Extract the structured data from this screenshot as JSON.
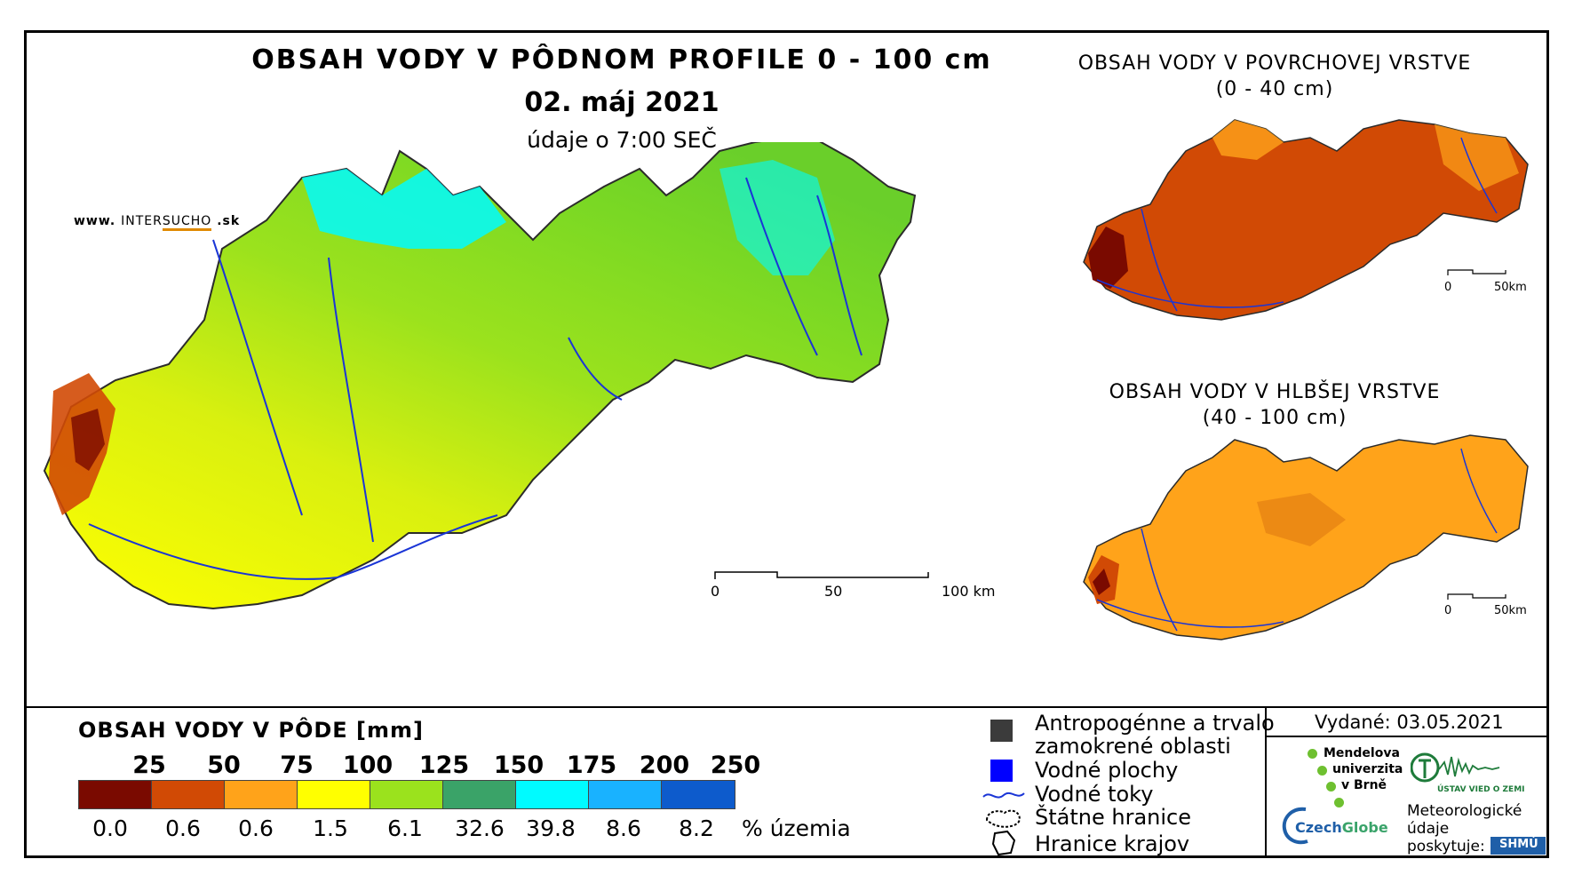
{
  "main_map": {
    "title": "OBSAH VODY V PÔDNOM PROFILE 0 - 100 cm",
    "date": "02. máj 2021",
    "time_note": "údaje o 7:00 SEČ",
    "website_prefix": "www.",
    "website_brand": "INTER",
    "website_brand2": "SUCHO",
    "website_suffix": ".sk",
    "scale": {
      "labels": [
        "0",
        "50",
        "100 km"
      ],
      "max_km": 100
    }
  },
  "surface_map": {
    "title_line1": "OBSAH VODY V POVRCHOVEJ VRSTVE",
    "title_line2": "(0 - 40 cm)",
    "scale": {
      "labels": [
        "0",
        "50km"
      ]
    }
  },
  "deep_map": {
    "title_line1": "OBSAH VODY V HLBŠEJ VRSTVE",
    "title_line2": "(40 - 100 cm)",
    "scale": {
      "labels": [
        "0",
        "50km"
      ]
    }
  },
  "legend": {
    "title": "OBSAH VODY V PÔDE [mm]",
    "thresholds": [
      "25",
      "50",
      "75",
      "100",
      "125",
      "150",
      "175",
      "200",
      "250"
    ],
    "class_colors": [
      "#7a0a00",
      "#d14a05",
      "#ffa31a",
      "#ffff00",
      "#9be21d",
      "#3aa368",
      "#00fbff",
      "#19b2ff",
      "#0d5bcc"
    ],
    "percentages": [
      "0.0",
      "0.6",
      "0.6",
      "1.5",
      "6.1",
      "32.6",
      "39.8",
      "8.6",
      "8.2"
    ],
    "percent_unit": "% územia"
  },
  "symbols": {
    "urban_line1": "Antropogénne a trvalo",
    "urban_line2": "zamokrené oblasti",
    "water_bodies": "Vodné plochy",
    "rivers": "Vodné toky",
    "state_border": "Štátne hranice",
    "region_border": "Hranice krajov",
    "urban_color": "#3b3b3b",
    "water_color": "#0000ff",
    "river_color": "#1a35d6"
  },
  "issued": {
    "label": "Vydané: 03.05.2021"
  },
  "logos": {
    "mendel_1": "Mendelova",
    "mendel_2": "univerzita",
    "mendel_3": "v Brně",
    "globe_a": "Czech",
    "globe_b": "Globe",
    "uvzz": "ÚSTAV VIED O ZEMI",
    "meteo_1": "Meteorologické",
    "meteo_2": "údaje",
    "meteo_3": "poskytuje:",
    "shmu": "SHMÚ"
  }
}
